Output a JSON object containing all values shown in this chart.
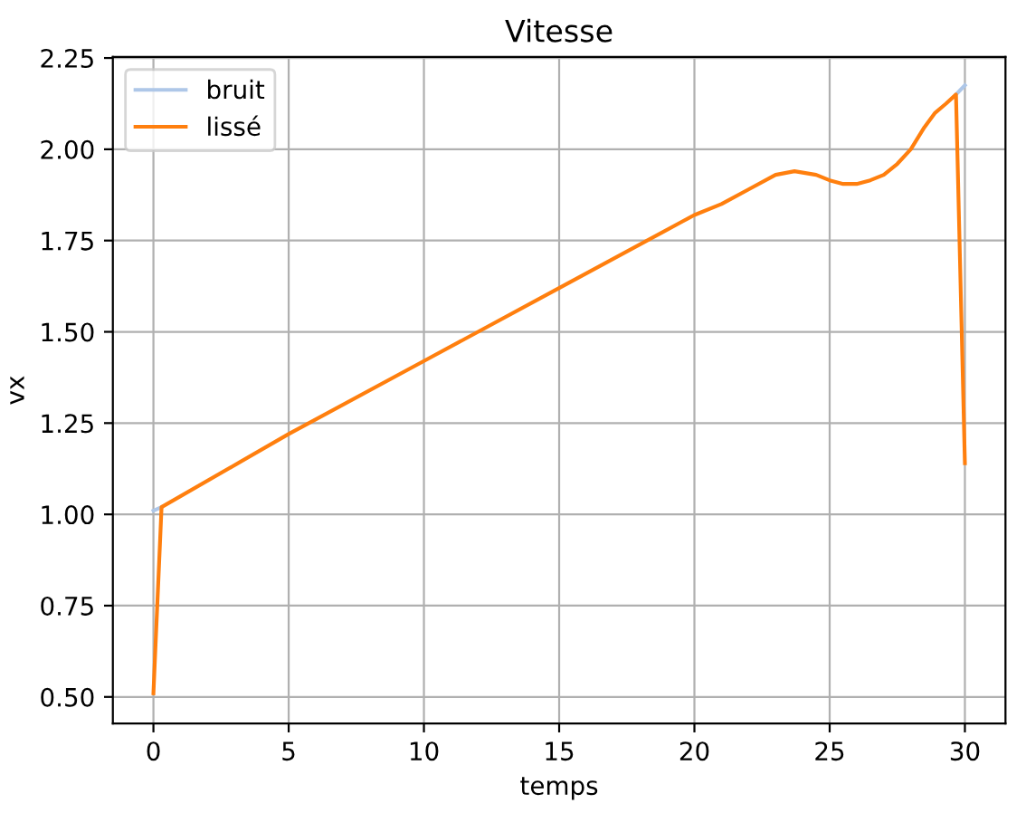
{
  "chart_data": {
    "type": "line",
    "title": "Vitesse",
    "xlabel": "temps",
    "ylabel": "vx",
    "series": [
      {
        "name": "bruit",
        "color": "#aec7e8",
        "x": [
          0,
          0.3,
          15,
          29.67,
          30
        ],
        "values": [
          1.01,
          1.02,
          null,
          2.15,
          2.175
        ]
      },
      {
        "name": "lissé",
        "color": "#ff7f0e",
        "x": [
          0,
          0.3,
          5,
          10,
          15,
          19.5,
          20,
          21,
          22,
          23,
          23.7,
          24.5,
          25,
          25.5,
          26,
          26.5,
          27,
          27.5,
          28,
          28.5,
          28.9,
          29.3,
          29.67,
          30
        ],
        "values": [
          0.51,
          1.02,
          1.22,
          1.42,
          1.62,
          1.8,
          1.82,
          1.85,
          1.89,
          1.93,
          1.94,
          1.93,
          1.915,
          1.905,
          1.905,
          1.915,
          1.93,
          1.96,
          2.0,
          2.06,
          2.1,
          2.125,
          2.15,
          1.14
        ]
      }
    ],
    "xlim": [
      -1.5,
      31.5
    ],
    "xticks": [
      0,
      5,
      10,
      15,
      20,
      25,
      30
    ],
    "ylim": [
      0.427,
      2.253
    ],
    "yticks": [
      {
        "value": 0.5,
        "label": "0.50"
      },
      {
        "value": 0.75,
        "label": "0.75"
      },
      {
        "value": 1.0,
        "label": "1.00"
      },
      {
        "value": 1.25,
        "label": "1.25"
      },
      {
        "value": 1.5,
        "label": "1.50"
      },
      {
        "value": 1.75,
        "label": "1.75"
      },
      {
        "value": 2.0,
        "label": "2.00"
      },
      {
        "value": 2.25,
        "label": "2.25"
      }
    ],
    "grid": true,
    "legend": "top left",
    "line_style": "solid",
    "marker": "none"
  }
}
